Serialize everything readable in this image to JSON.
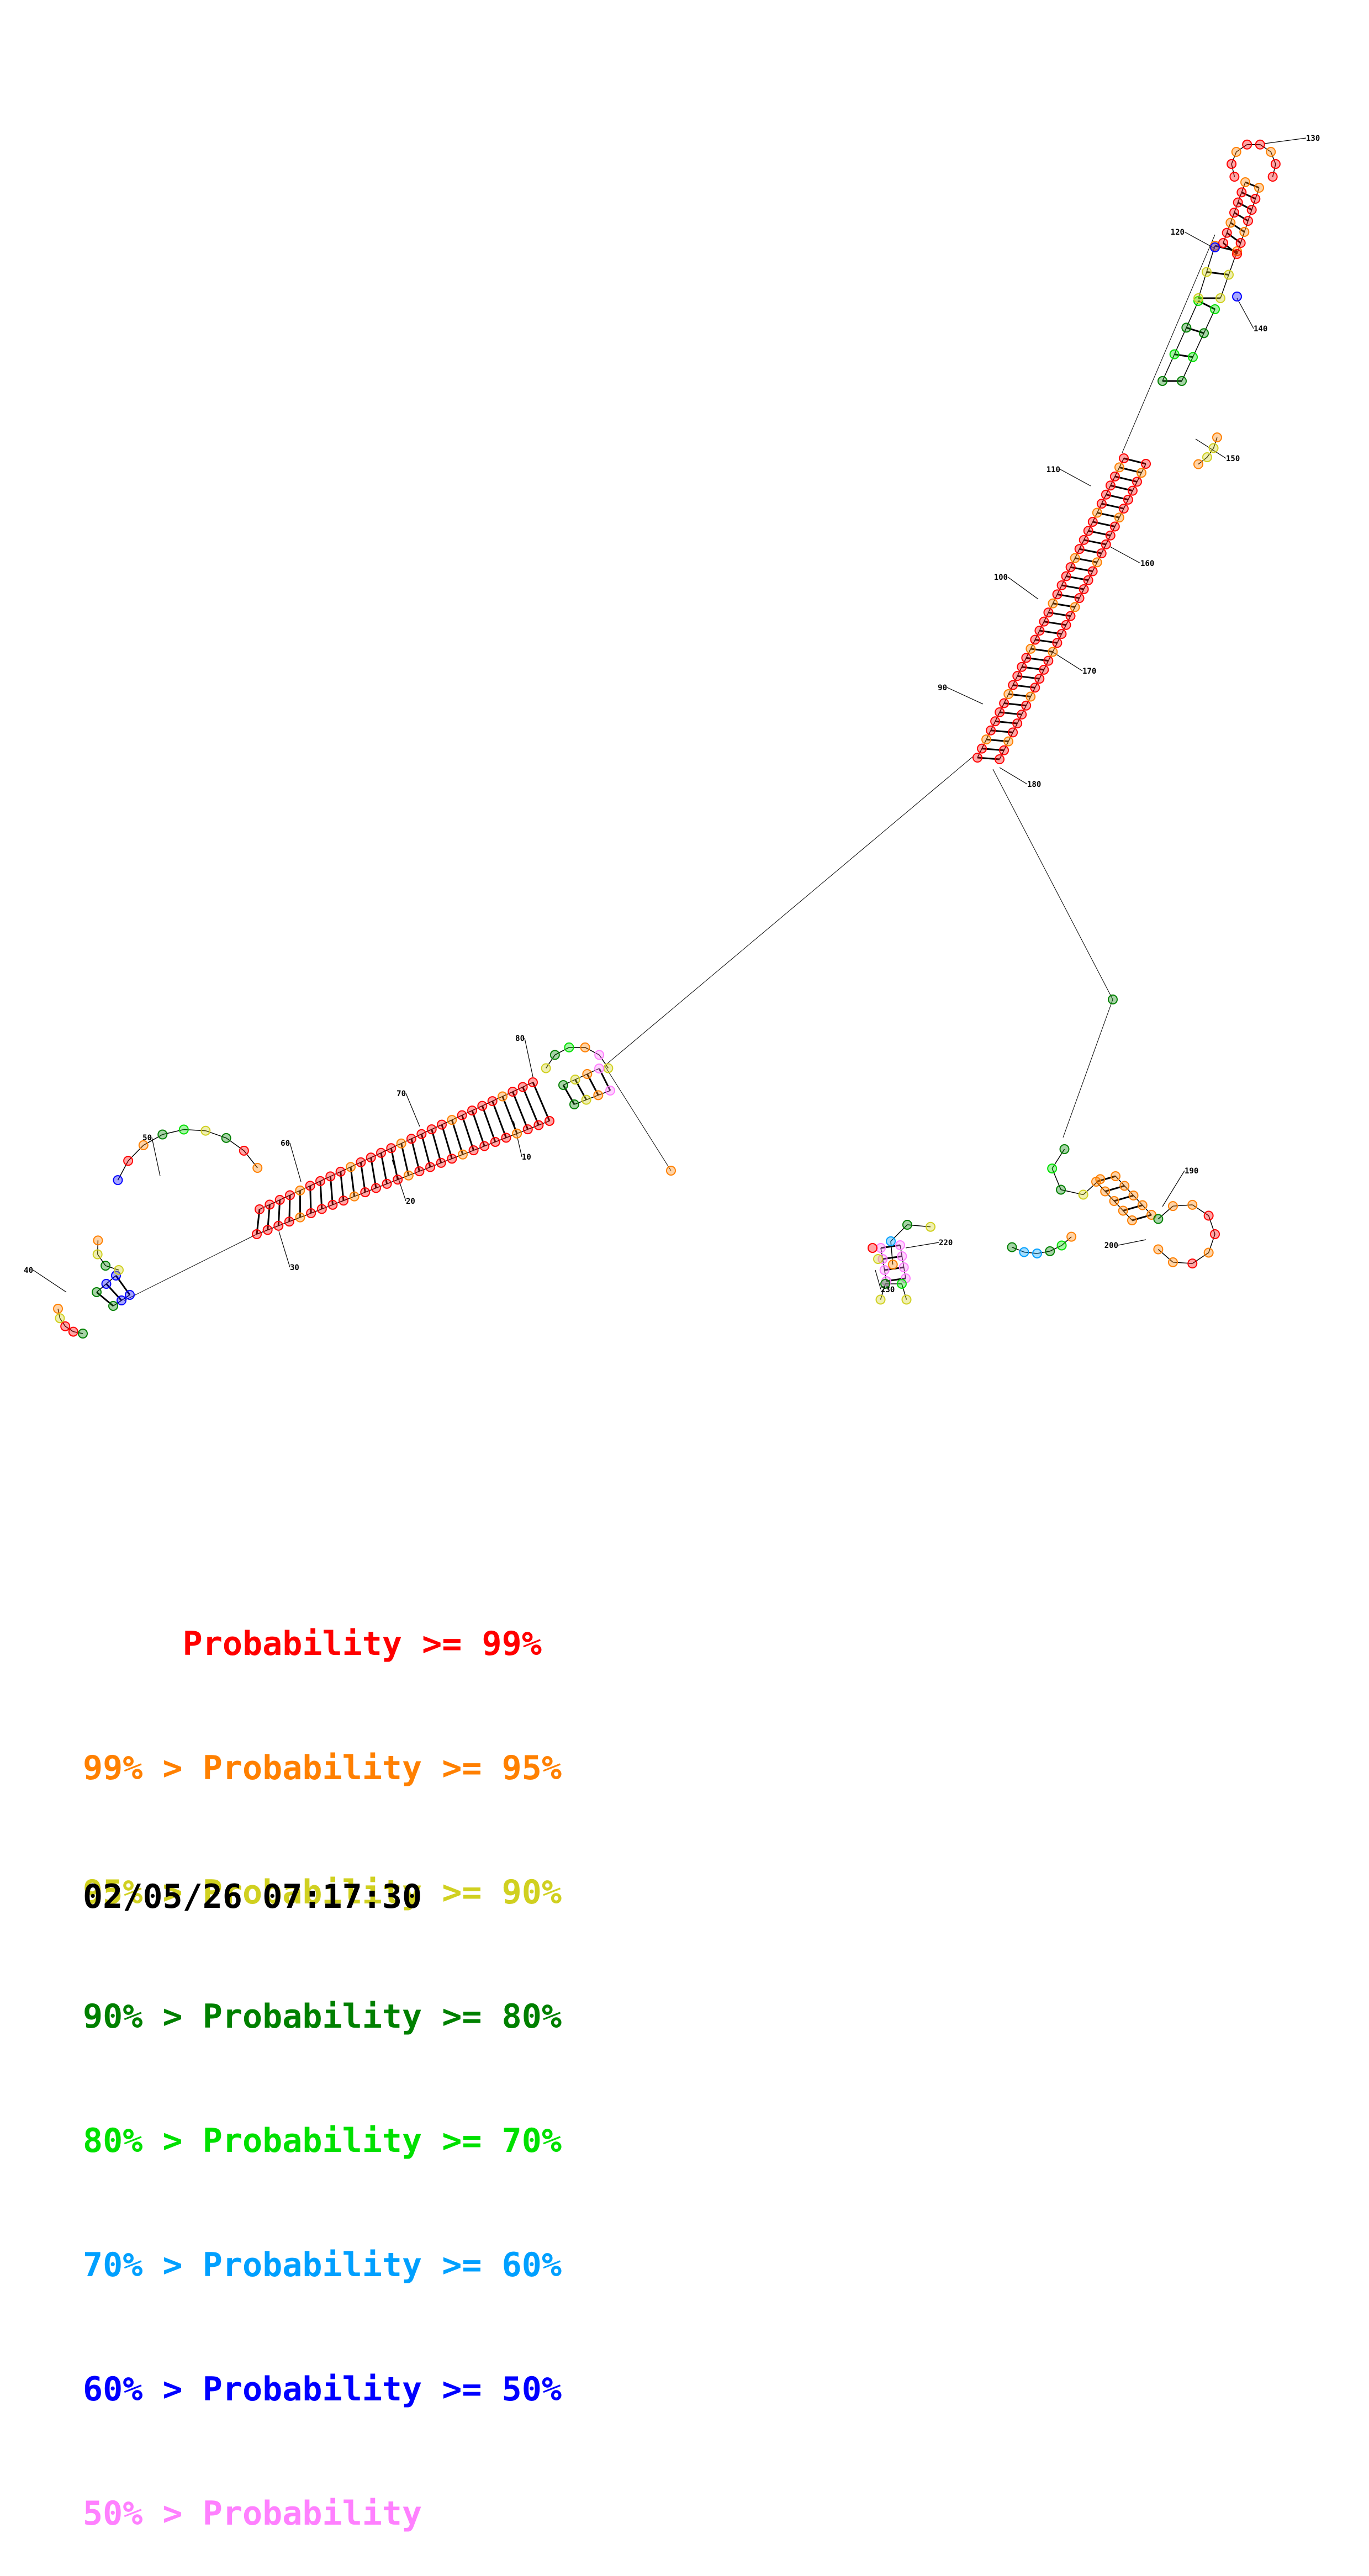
{
  "diagram": {
    "type": "rna-secondary-structure",
    "position_labels": [
      "10",
      "20",
      "30",
      "40",
      "50",
      "60",
      "70",
      "80",
      "90",
      "100",
      "110",
      "120",
      "130",
      "140",
      "150",
      "160",
      "170",
      "180",
      "190",
      "200",
      "220",
      "230"
    ],
    "colors": {
      "p99": "#ff0000",
      "p95": "#ff8000",
      "p90": "#d0d020",
      "p80": "#008000",
      "p70": "#00e000",
      "p60": "#00a0ff",
      "p50": "#0000ff",
      "plow": "#ff80ff"
    }
  },
  "legend": [
    {
      "text": "     Probability >= 99%",
      "color": "#ff0000"
    },
    {
      "text": "99% > Probability >= 95%",
      "color": "#ff8000"
    },
    {
      "text": "95% > Probability >= 90%",
      "color": "#d0d020"
    },
    {
      "text": "90% > Probability >= 80%",
      "color": "#008000"
    },
    {
      "text": "80% > Probability >= 70%",
      "color": "#00e000"
    },
    {
      "text": "70% > Probability >= 60%",
      "color": "#00a0ff"
    },
    {
      "text": "60% > Probability >= 50%",
      "color": "#0000ff"
    },
    {
      "text": "50% > Probability",
      "color": "#ff80ff"
    }
  ],
  "timestamp": "02/05/26 07:17:30"
}
